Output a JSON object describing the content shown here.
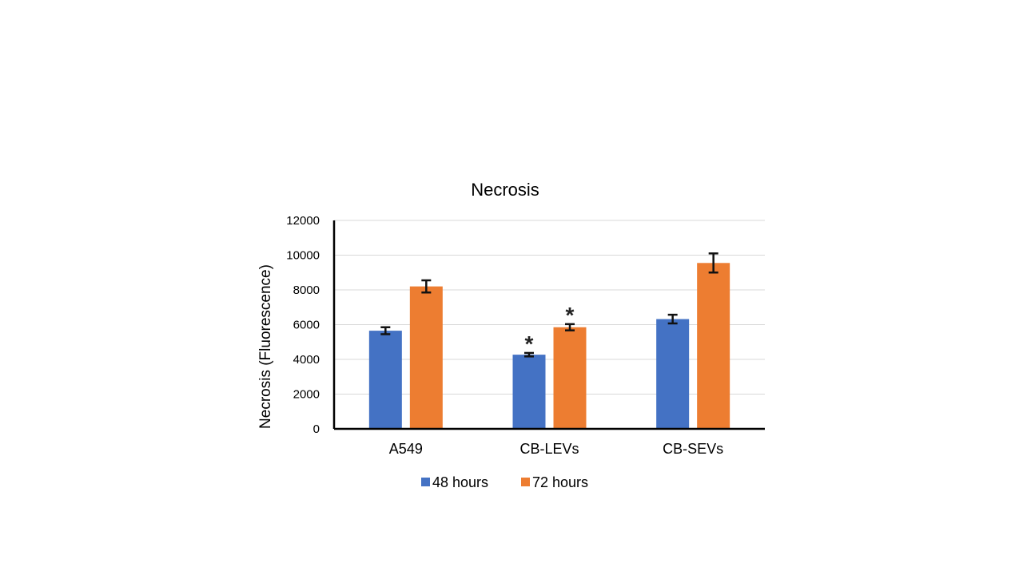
{
  "chart_data": {
    "type": "bar",
    "title": "Necrosis",
    "xlabel": "",
    "ylabel": "Necrosis (Fluorescence)",
    "ylim": [
      0,
      12000
    ],
    "yticks": [
      0,
      2000,
      4000,
      6000,
      8000,
      10000,
      12000
    ],
    "grid": true,
    "legend_position": "bottom",
    "categories": [
      "A549",
      "CB-LEVs",
      "CB-SEVs"
    ],
    "series": [
      {
        "name": "48 hours",
        "color": "#4472C4",
        "values": [
          5650,
          4270,
          6320
        ],
        "errors": [
          200,
          100,
          250
        ],
        "significance": [
          "",
          "*",
          ""
        ]
      },
      {
        "name": "72 hours",
        "color": "#ED7D31",
        "values": [
          8200,
          5850,
          9550
        ],
        "errors": [
          350,
          180,
          550
        ],
        "significance": [
          "",
          "*",
          ""
        ]
      }
    ]
  }
}
